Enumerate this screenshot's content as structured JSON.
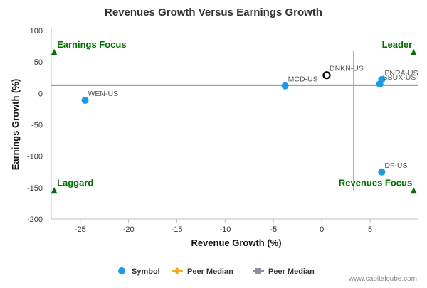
{
  "chart_data": {
    "type": "scatter",
    "title": "Revenues Growth Versus Earnings Growth",
    "xlabel": "Revenue Growth (%)",
    "ylabel": "Earnings Growth (%)",
    "xlim": [
      -28,
      10
    ],
    "ylim": [
      -200,
      100
    ],
    "xticks": [
      -25,
      -20,
      -15,
      -10,
      -5,
      0,
      5
    ],
    "yticks": [
      100,
      50,
      0,
      -50,
      -100,
      -150,
      -200
    ],
    "grid": false,
    "legend_position": "bottom",
    "points": [
      {
        "label": "DNKN-US",
        "x": 0.5,
        "y": 29,
        "highlight": true
      },
      {
        "label": "PNRA-US",
        "x": 6.2,
        "y": 22,
        "highlight": false
      },
      {
        "label": "SBUX-US",
        "x": 6.0,
        "y": 15,
        "highlight": false
      },
      {
        "label": "MCD-US",
        "x": -3.8,
        "y": 12,
        "highlight": false
      },
      {
        "label": "WEN-US",
        "x": -24.5,
        "y": -11,
        "highlight": false
      },
      {
        "label": "DF-US",
        "x": 6.2,
        "y": -125,
        "highlight": false
      }
    ],
    "peer_median_revenue": 3.3,
    "peer_median_earnings": 13,
    "peer_median_revenue_range": [
      -155,
      67
    ],
    "quadrant_labels": [
      {
        "text": "Earnings Focus",
        "position": "top-left",
        "x": -27.7,
        "y": 65
      },
      {
        "text": "Leader",
        "position": "top-right",
        "x": 9.5,
        "y": 65
      },
      {
        "text": "Laggard",
        "position": "bottom-left",
        "x": -27.7,
        "y": -155
      },
      {
        "text": "Revenues Focus",
        "position": "bottom-right",
        "x": 9.5,
        "y": -155
      }
    ],
    "legend": [
      {
        "label": "Symbol",
        "marker": "circle"
      },
      {
        "label": "Peer Median",
        "marker": "diamond-line"
      },
      {
        "label": "Peer Median",
        "marker": "square-line"
      }
    ],
    "colors": {
      "point": "#1a9be6",
      "highlight_stroke": "#000000",
      "quadrant": "#007000",
      "median_revenue": "#f5a623",
      "median_earnings": "#8a90a0",
      "axis_text": "#333333",
      "point_label": "#555555"
    }
  },
  "footer": {
    "credit": "www.capitalcube.com"
  }
}
